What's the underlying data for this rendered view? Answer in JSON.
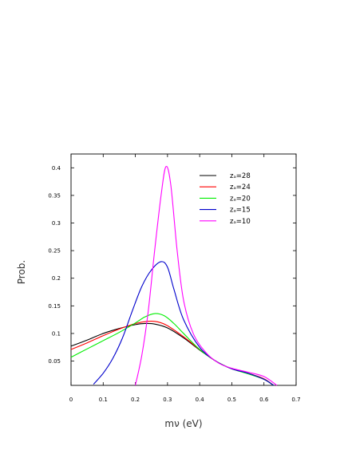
{
  "chart_data": {
    "type": "line",
    "title": "",
    "xlabel": "mν (eV)",
    "ylabel": "Prob.",
    "xlim": [
      0,
      0.7
    ],
    "ylim": [
      0.006,
      0.425
    ],
    "x_ticks": [
      0,
      0.1,
      0.2,
      0.3,
      0.4,
      0.5,
      0.6,
      0.7
    ],
    "x_tick_labels": [
      "0",
      "0.1",
      "0.2",
      "0.3",
      "0.4",
      "0.5",
      "0.6",
      "0.7"
    ],
    "y_ticks": [
      0.05,
      0.1,
      0.15,
      0.2,
      0.25,
      0.3,
      0.35,
      0.4
    ],
    "y_tick_labels": [
      "0.05",
      "0.1",
      "0.15",
      "0.2",
      "0.25",
      "0.3",
      "0.35",
      "0.4"
    ],
    "grid": false,
    "legend_position": "top-right",
    "series": [
      {
        "name": "zₐ=28",
        "color": "#000000",
        "x": [
          0.0,
          0.05,
          0.1,
          0.15,
          0.2,
          0.23,
          0.26,
          0.3,
          0.35,
          0.4,
          0.45,
          0.5,
          0.55,
          0.6,
          0.63
        ],
        "y": [
          0.077,
          0.088,
          0.1,
          0.109,
          0.116,
          0.118,
          0.117,
          0.11,
          0.092,
          0.07,
          0.05,
          0.036,
          0.028,
          0.017,
          0.006
        ]
      },
      {
        "name": "zₐ=24",
        "color": "#ff0000",
        "x": [
          0.0,
          0.05,
          0.1,
          0.15,
          0.2,
          0.24,
          0.27,
          0.3,
          0.35,
          0.4,
          0.45,
          0.5,
          0.55,
          0.6,
          0.63
        ],
        "y": [
          0.071,
          0.083,
          0.096,
          0.108,
          0.118,
          0.122,
          0.121,
          0.114,
          0.094,
          0.071,
          0.05,
          0.036,
          0.028,
          0.018,
          0.006
        ]
      },
      {
        "name": "zₐ=20",
        "color": "#00ee00",
        "x": [
          0.0,
          0.05,
          0.1,
          0.15,
          0.2,
          0.23,
          0.26,
          0.29,
          0.32,
          0.35,
          0.4,
          0.45,
          0.5,
          0.55,
          0.6,
          0.63
        ],
        "y": [
          0.057,
          0.072,
          0.087,
          0.102,
          0.119,
          0.13,
          0.136,
          0.132,
          0.118,
          0.1,
          0.071,
          0.05,
          0.036,
          0.027,
          0.017,
          0.006
        ]
      },
      {
        "name": "zₐ=15",
        "color": "#0000cc",
        "x": [
          0.07,
          0.1,
          0.13,
          0.16,
          0.19,
          0.22,
          0.25,
          0.28,
          0.3,
          0.32,
          0.35,
          0.4,
          0.45,
          0.5,
          0.55,
          0.6,
          0.63
        ],
        "y": [
          0.008,
          0.028,
          0.055,
          0.092,
          0.14,
          0.185,
          0.215,
          0.23,
          0.22,
          0.18,
          0.125,
          0.075,
          0.05,
          0.036,
          0.028,
          0.017,
          0.006
        ]
      },
      {
        "name": "zₐ=10",
        "color": "#ff00ff",
        "x": [
          0.2,
          0.22,
          0.24,
          0.26,
          0.28,
          0.295,
          0.31,
          0.33,
          0.35,
          0.38,
          0.42,
          0.46,
          0.5,
          0.55,
          0.6,
          0.64
        ],
        "y": [
          0.006,
          0.06,
          0.14,
          0.25,
          0.35,
          0.402,
          0.37,
          0.25,
          0.16,
          0.1,
          0.065,
          0.046,
          0.037,
          0.03,
          0.022,
          0.006
        ]
      }
    ]
  }
}
